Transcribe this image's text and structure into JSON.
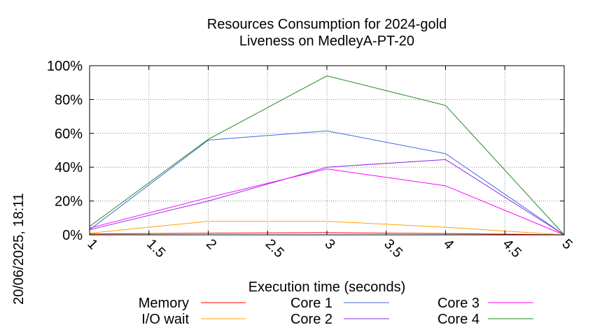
{
  "chart_data": {
    "type": "line",
    "title": "Resources Consumption for 2024-gold",
    "subtitle": "Liveness on MedleyA-PT-20",
    "xlabel": "Execution time (seconds)",
    "ylabel": "",
    "side_label": "20/06/2025, 18:11",
    "xlim": [
      1,
      5
    ],
    "ylim": [
      0,
      100
    ],
    "x_ticks": [
      "1",
      "1.5",
      "2",
      "2.5",
      "3",
      "3.5",
      "4",
      "4.5",
      "5"
    ],
    "y_ticks": [
      "0%",
      "20%",
      "40%",
      "60%",
      "80%",
      "100%"
    ],
    "grid": true,
    "legend_position": "bottom",
    "x": [
      1,
      2,
      3,
      4,
      5
    ],
    "series": [
      {
        "name": "Memory",
        "color": "#ff0000",
        "values": [
          0.5,
          1,
          1.3,
          0.8,
          0
        ]
      },
      {
        "name": "I/O wait",
        "color": "#ffa500",
        "values": [
          1,
          8,
          8,
          4.5,
          0
        ]
      },
      {
        "name": "Core 1",
        "color": "#4169e1",
        "values": [
          3,
          56,
          61.5,
          48,
          0
        ]
      },
      {
        "name": "Core 2",
        "color": "#8a2be2",
        "values": [
          3,
          20,
          40,
          44.5,
          0
        ]
      },
      {
        "name": "Core 3",
        "color": "#ff00ff",
        "values": [
          4,
          22,
          39,
          29,
          0
        ]
      },
      {
        "name": "Core 4",
        "color": "#228b22",
        "values": [
          5,
          56.5,
          94,
          76.5,
          0
        ]
      }
    ]
  }
}
